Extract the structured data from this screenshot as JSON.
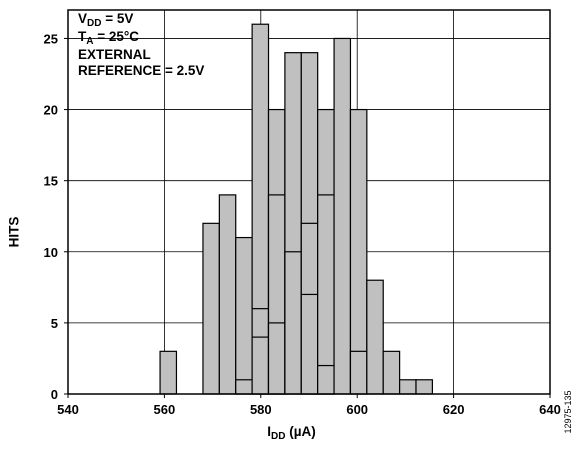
{
  "chart_data": {
    "type": "bar",
    "xlabel_main": "I",
    "xlabel_sub": "DD",
    "xlabel_unit": " (µA)",
    "ylabel": "HITS",
    "xlim": [
      540,
      640
    ],
    "ylim": [
      0,
      27
    ],
    "x_ticks": [
      540,
      560,
      580,
      600,
      620,
      640
    ],
    "y_ticks": [
      0,
      5,
      10,
      15,
      20,
      25
    ],
    "grid": true,
    "bin_width": 3.4,
    "bar_color": "#c0c0c0",
    "bins": [
      {
        "x": 559.1,
        "value": 3
      },
      {
        "x": 568.0,
        "value": 12
      },
      {
        "x": 571.4,
        "value": 14
      },
      {
        "x": 574.8,
        "value": 11
      },
      {
        "x": 574.8,
        "value": 1
      },
      {
        "x": 578.2,
        "value": 26
      },
      {
        "x": 578.2,
        "value": 6
      },
      {
        "x": 578.2,
        "value": 4
      },
      {
        "x": 581.6,
        "value": 20
      },
      {
        "x": 581.6,
        "value": 14
      },
      {
        "x": 581.6,
        "value": 5
      },
      {
        "x": 585.0,
        "value": 24
      },
      {
        "x": 585.0,
        "value": 10
      },
      {
        "x": 588.4,
        "value": 24
      },
      {
        "x": 588.4,
        "value": 12
      },
      {
        "x": 588.4,
        "value": 7
      },
      {
        "x": 591.8,
        "value": 20
      },
      {
        "x": 591.8,
        "value": 14
      },
      {
        "x": 591.8,
        "value": 2
      },
      {
        "x": 595.2,
        "value": 25
      },
      {
        "x": 598.6,
        "value": 20
      },
      {
        "x": 598.6,
        "value": 3
      },
      {
        "x": 602.0,
        "value": 8
      },
      {
        "x": 605.4,
        "value": 3
      },
      {
        "x": 608.8,
        "value": 1
      },
      {
        "x": 612.2,
        "value": 1
      }
    ],
    "legend_lines": [
      {
        "main": "V",
        "sub": "DD",
        "rest": " = 5V"
      },
      {
        "main": "T",
        "sub": "A",
        "rest": " = 25°C"
      },
      {
        "main": "EXTERNAL",
        "sub": "",
        "rest": ""
      },
      {
        "main": "REFERENCE = 2.5V",
        "sub": "",
        "rest": ""
      }
    ],
    "legend_position": "top-left"
  },
  "figure_id": "12975-135"
}
